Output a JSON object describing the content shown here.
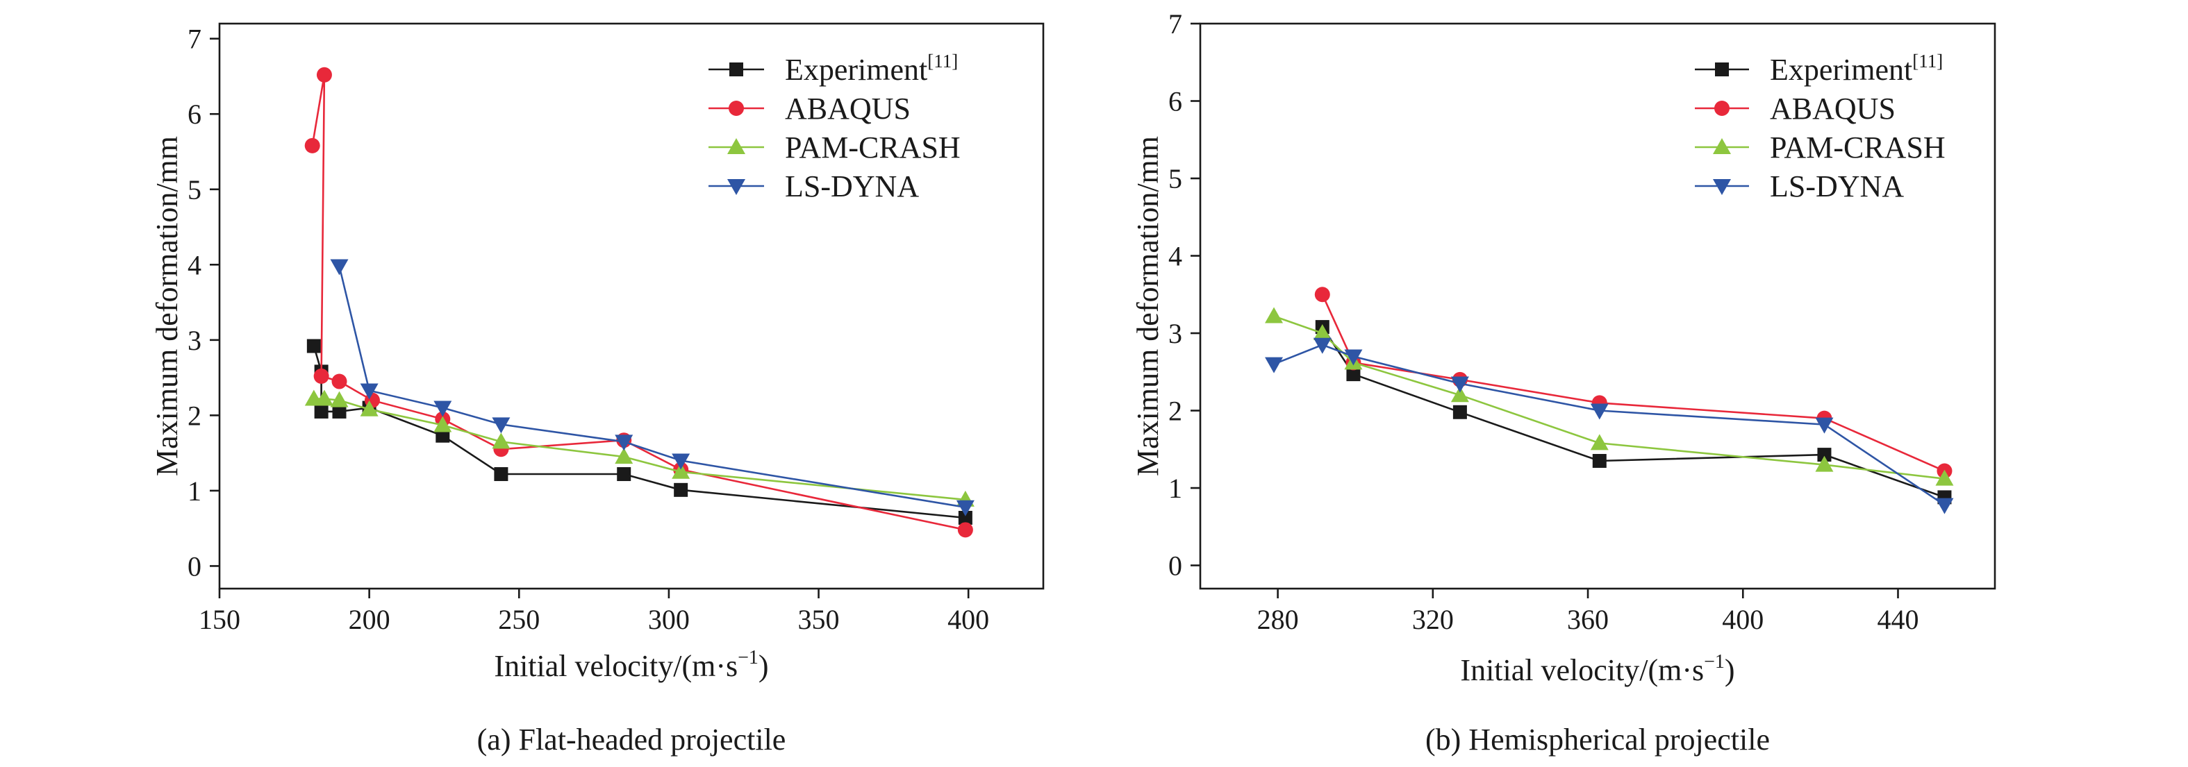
{
  "chart_data": [
    {
      "type": "line",
      "caption": "(a) Flat-headed projectile",
      "xlabel": "Initial velocity/(m·s",
      "xlabel_sup": "−1",
      "xlabel_tail": ")",
      "ylabel": "Maximum deformation/mm",
      "xlim": [
        150,
        425
      ],
      "ylim": [
        -0.3,
        7.2
      ],
      "xticks": [
        "150",
        "200",
        "250",
        "300",
        "350",
        "400"
      ],
      "xtick_values": [
        150,
        200,
        250,
        300,
        350,
        400
      ],
      "yticks": [
        "0",
        "1",
        "2",
        "3",
        "4",
        "5",
        "6",
        "7"
      ],
      "ytick_values": [
        0,
        1,
        2,
        3,
        4,
        5,
        6,
        7
      ],
      "legend_position": "top-right",
      "series": [
        {
          "name": "Experiment",
          "name_sup": "[11]",
          "color": "#1a1a1a",
          "marker": "square",
          "points": [
            [
              181.5,
              2.92
            ],
            [
              184,
              2.58
            ],
            [
              184,
              2.05
            ],
            [
              190,
              2.05
            ],
            [
              200,
              2.1
            ],
            [
              224.5,
              1.73
            ],
            [
              244,
              1.22
            ],
            [
              285,
              1.22
            ],
            [
              304,
              1.01
            ],
            [
              399,
              0.64
            ]
          ]
        },
        {
          "name": "ABAQUS",
          "color": "#e8283a",
          "marker": "circle",
          "points": [
            [
              181,
              5.58
            ],
            [
              185,
              6.52
            ],
            [
              184,
              2.52
            ],
            [
              190,
              2.45
            ],
            [
              201,
              2.2
            ],
            [
              224.5,
              1.95
            ],
            [
              244,
              1.55
            ],
            [
              285,
              1.67
            ],
            [
              304,
              1.28
            ],
            [
              399,
              0.48
            ]
          ]
        },
        {
          "name": "PAM-CRASH",
          "color": "#8dc63f",
          "marker": "triangle-up",
          "points": [
            [
              181.5,
              2.22
            ],
            [
              185,
              2.22
            ],
            [
              190,
              2.2
            ],
            [
              200,
              2.08
            ],
            [
              224.5,
              1.87
            ],
            [
              244,
              1.65
            ],
            [
              285,
              1.45
            ],
            [
              304,
              1.25
            ],
            [
              399,
              0.88
            ]
          ]
        },
        {
          "name": "LS-DYNA",
          "color": "#2e55a5",
          "marker": "triangle-down",
          "points": [
            [
              190,
              3.98
            ],
            [
              200,
              2.33
            ],
            [
              224.5,
              2.1
            ],
            [
              244,
              1.88
            ],
            [
              285,
              1.65
            ],
            [
              304,
              1.4
            ],
            [
              399,
              0.78
            ]
          ]
        }
      ]
    },
    {
      "type": "line",
      "caption": "(b) Hemispherical projectile",
      "xlabel": "Initial velocity/(m·s",
      "xlabel_sup": "−1",
      "xlabel_tail": ")",
      "ylabel": "Maximum deformation/mm",
      "xlim": [
        260,
        465
      ],
      "ylim": [
        -0.3,
        7.0
      ],
      "xticks": [
        "280",
        "320",
        "360",
        "400",
        "440"
      ],
      "xtick_values": [
        280,
        320,
        360,
        400,
        440
      ],
      "yticks": [
        "0",
        "1",
        "2",
        "3",
        "4",
        "5",
        "6",
        "7"
      ],
      "ytick_values": [
        0,
        1,
        2,
        3,
        4,
        5,
        6,
        7
      ],
      "legend_position": "top-right",
      "series": [
        {
          "name": "Experiment",
          "name_sup": "[11]",
          "color": "#1a1a1a",
          "marker": "square",
          "points": [
            [
              291.5,
              3.08
            ],
            [
              299.5,
              2.47
            ],
            [
              327,
              1.98
            ],
            [
              363,
              1.35
            ],
            [
              421,
              1.43
            ],
            [
              452,
              0.88
            ]
          ]
        },
        {
          "name": "ABAQUS",
          "color": "#e8283a",
          "marker": "circle",
          "points": [
            [
              291.5,
              3.5
            ],
            [
              299.5,
              2.62
            ],
            [
              327,
              2.4
            ],
            [
              363,
              2.1
            ],
            [
              421,
              1.9
            ],
            [
              452,
              1.22
            ]
          ]
        },
        {
          "name": "PAM-CRASH",
          "color": "#8dc63f",
          "marker": "triangle-up",
          "points": [
            [
              279,
              3.22
            ],
            [
              291.5,
              3.0
            ],
            [
              299.5,
              2.62
            ],
            [
              327,
              2.2
            ],
            [
              363,
              1.58
            ],
            [
              421,
              1.3
            ],
            [
              452,
              1.12
            ]
          ]
        },
        {
          "name": "LS-DYNA",
          "color": "#2e55a5",
          "marker": "triangle-down",
          "points": [
            [
              279,
              2.6
            ],
            [
              291.5,
              2.85
            ],
            [
              299.5,
              2.7
            ],
            [
              327,
              2.35
            ],
            [
              363,
              2.0
            ],
            [
              421,
              1.82
            ],
            [
              452,
              0.78
            ]
          ]
        }
      ]
    }
  ]
}
